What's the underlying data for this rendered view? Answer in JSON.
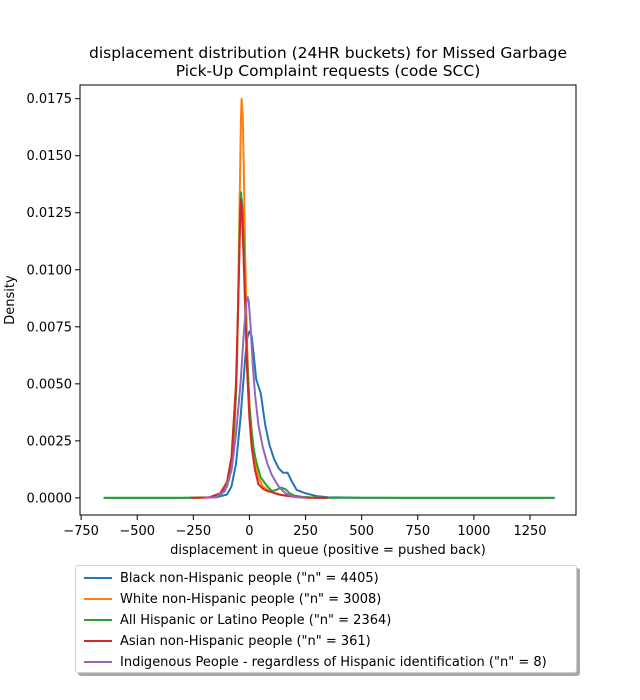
{
  "chart_data": {
    "type": "line",
    "title": "displacement distribution (24HR buckets) for Missed Garbage\nPick-Up Complaint requests (code SCC)",
    "title_lines": [
      "displacement distribution (24HR buckets) for Missed Garbage",
      "Pick-Up Complaint requests (code SCC)"
    ],
    "xlabel": "displacement in queue (positive = pushed back)",
    "ylabel": "Density",
    "xlim": [
      -750,
      1350
    ],
    "ylim": [
      0,
      0.0175
    ],
    "xticks": [
      -750,
      -500,
      -250,
      0,
      250,
      500,
      750,
      1000,
      1250
    ],
    "xtick_labels": [
      "−750",
      "−500",
      "−250",
      "0",
      "250",
      "500",
      "750",
      "1000",
      "1250"
    ],
    "yticks": [
      0,
      0.0025,
      0.005,
      0.0075,
      0.01,
      0.0125,
      0.015,
      0.0175
    ],
    "ytick_labels": [
      "0.0000",
      "0.0025",
      "0.0050",
      "0.0075",
      "0.0100",
      "0.0125",
      "0.0150",
      "0.0175"
    ],
    "grid": false,
    "legend_position": "below",
    "series": [
      {
        "name": "Black non-Hispanic people (\"n\" = 4405)",
        "color": "#1f77b4",
        "x": [
          -650,
          -300,
          -150,
          -100,
          -80,
          -60,
          -40,
          -20,
          -10,
          0,
          10,
          20,
          30,
          50,
          70,
          90,
          110,
          130,
          150,
          170,
          190,
          210,
          250,
          300,
          350,
          500,
          700,
          1000,
          1360
        ],
        "y": [
          0,
          0,
          2e-05,
          0.00015,
          0.0005,
          0.0015,
          0.0035,
          0.006,
          0.007,
          0.0073,
          0.0071,
          0.0062,
          0.0052,
          0.0046,
          0.0032,
          0.0023,
          0.0017,
          0.0013,
          0.0011,
          0.0011,
          0.0007,
          0.00035,
          0.0002,
          8e-05,
          3e-05,
          1e-05,
          0,
          0,
          0
        ]
      },
      {
        "name": "White non-Hispanic people (\"n\" = 3008)",
        "color": "#ff7f0e",
        "x": [
          -250,
          -180,
          -140,
          -110,
          -90,
          -70,
          -55,
          -45,
          -38,
          -35,
          -30,
          -25,
          -20,
          -10,
          0,
          10,
          20,
          30,
          40,
          60,
          80,
          100,
          150,
          200,
          300,
          370
        ],
        "y": [
          0,
          2e-05,
          0.0001,
          0.0003,
          0.0008,
          0.002,
          0.006,
          0.012,
          0.0165,
          0.0175,
          0.0168,
          0.0145,
          0.011,
          0.0065,
          0.0042,
          0.0029,
          0.0019,
          0.0013,
          0.0009,
          0.0005,
          0.00035,
          0.00025,
          0.00012,
          5e-05,
          1e-05,
          0
        ]
      },
      {
        "name": "All Hispanic or Latino People (\"n\" = 2364)",
        "color": "#2ca02c",
        "x": [
          -650,
          -300,
          -180,
          -130,
          -100,
          -80,
          -60,
          -50,
          -42,
          -38,
          -32,
          -25,
          -18,
          -10,
          0,
          10,
          20,
          30,
          50,
          80,
          100,
          120,
          140,
          160,
          180,
          200,
          240,
          300,
          500,
          700,
          1000,
          1360
        ],
        "y": [
          0,
          0,
          2e-05,
          0.00012,
          0.0005,
          0.0015,
          0.0045,
          0.0085,
          0.0125,
          0.0134,
          0.0128,
          0.011,
          0.0085,
          0.006,
          0.004,
          0.0029,
          0.0021,
          0.0016,
          0.0009,
          0.0005,
          0.0003,
          0.00035,
          0.00045,
          0.00038,
          0.0002,
          0.0001,
          4e-05,
          1e-05,
          0,
          0,
          0,
          0
        ]
      },
      {
        "name": "Asian non-Hispanic people (\"n\" = 361)",
        "color": "#d62728",
        "x": [
          -260,
          -180,
          -130,
          -100,
          -80,
          -60,
          -50,
          -42,
          -38,
          -33,
          -26,
          -18,
          -10,
          0,
          10,
          25,
          40,
          60,
          80,
          100,
          130,
          160,
          200,
          260,
          350
        ],
        "y": [
          0,
          2e-05,
          0.0002,
          0.0007,
          0.0018,
          0.005,
          0.0085,
          0.0118,
          0.0131,
          0.0125,
          0.0105,
          0.008,
          0.0055,
          0.0035,
          0.0022,
          0.0012,
          0.0006,
          0.0004,
          0.0003,
          0.00025,
          0.00015,
          0.0001,
          5e-05,
          1e-05,
          0
        ]
      },
      {
        "name": "Indigenous People - regardless of Hispanic identification (\"n\" = 8)",
        "color": "#9467bd",
        "x": [
          -200,
          -150,
          -110,
          -80,
          -60,
          -40,
          -25,
          -15,
          -8,
          -3,
          5,
          15,
          25,
          40,
          60,
          80,
          100,
          130,
          160,
          200,
          250
        ],
        "y": [
          0,
          3e-05,
          0.0003,
          0.0012,
          0.0028,
          0.005,
          0.0072,
          0.0085,
          0.0088,
          0.0086,
          0.0075,
          0.0058,
          0.0045,
          0.0032,
          0.0022,
          0.0015,
          0.001,
          0.0005,
          0.0002,
          4e-05,
          0
        ]
      }
    ]
  }
}
